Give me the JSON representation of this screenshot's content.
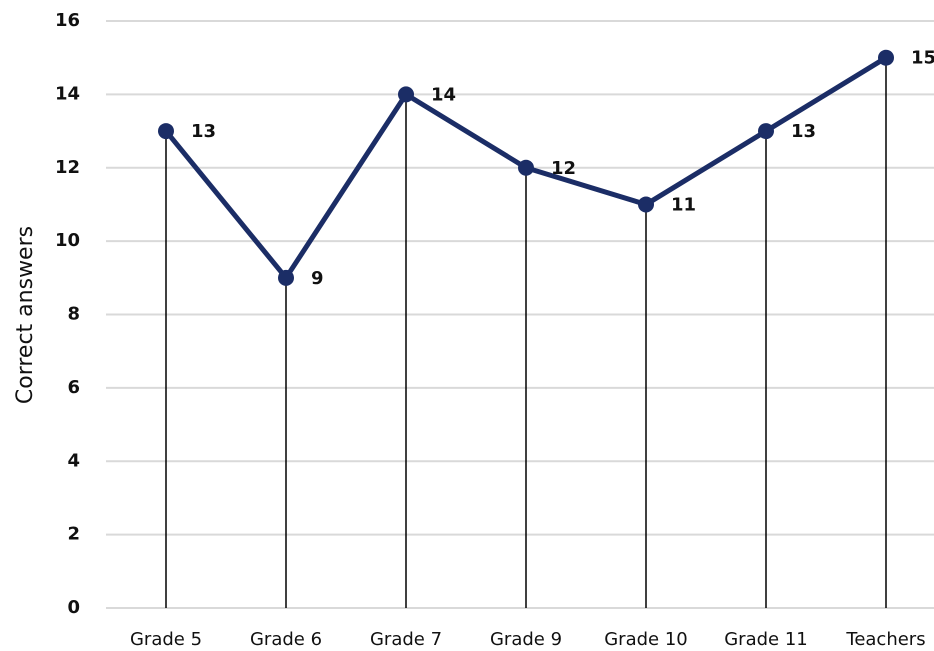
{
  "chart_data": {
    "type": "line",
    "y_label": "Correct answers",
    "categories": [
      "Grade 5",
      "Grade 6",
      "Grade 7",
      "Grade 9",
      "Grade 10",
      "Grade 11",
      "Teachers"
    ],
    "values": [
      13,
      9,
      14,
      12,
      11,
      13,
      15
    ],
    "color": "#1b2d66",
    "ylim": [
      0,
      16
    ],
    "yticks": [
      0,
      2,
      4,
      6,
      8,
      10,
      12,
      14,
      16
    ],
    "grid": true,
    "drop_lines": true,
    "data_labels": true
  }
}
